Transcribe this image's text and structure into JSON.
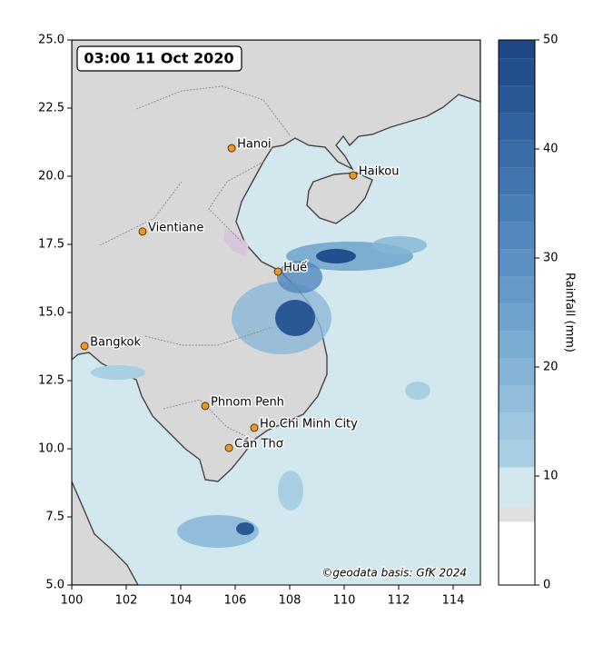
{
  "map": {
    "title": "03:00 11 Oct 2020",
    "xlim": [
      100,
      115
    ],
    "ylim": [
      5,
      25
    ],
    "xticks": [
      100,
      102,
      104,
      106,
      108,
      110,
      112,
      114
    ],
    "yticks": [
      {
        "value": 5,
        "label": "5.0"
      },
      7.5,
      {
        "value": 10,
        "label": "10.0"
      },
      12.5,
      {
        "value": 15,
        "label": "15.0"
      },
      17.5,
      {
        "value": 20,
        "label": "20.0"
      },
      22.5,
      {
        "value": 25,
        "label": "25.0"
      }
    ],
    "cities": [
      {
        "name": "Hanoi",
        "lon": 105.87,
        "lat": 21.03
      },
      {
        "name": "Haikou",
        "lon": 110.33,
        "lat": 20.03
      },
      {
        "name": "Vientiane",
        "lon": 102.6,
        "lat": 17.97
      },
      {
        "name": "Huế",
        "lon": 107.57,
        "lat": 16.5
      },
      {
        "name": "Bangkok",
        "lon": 100.47,
        "lat": 13.77
      },
      {
        "name": "Phnom Penh",
        "lon": 104.9,
        "lat": 11.57
      },
      {
        "name": "Ho Chi Minh City",
        "lon": 106.7,
        "lat": 10.77
      },
      {
        "name": "Cần Thơ",
        "lon": 105.77,
        "lat": 10.03
      }
    ],
    "attribution": "©geodata basis: GfK 2024",
    "colorbar": {
      "label": "Rainfall (mm)",
      "lim": [
        0,
        50
      ],
      "ticks": [
        0,
        10,
        20,
        30,
        40,
        50
      ],
      "levels": [
        0,
        5.8,
        7.2,
        10.8,
        13.3,
        15.8,
        18.3,
        20.8,
        23.3,
        25.8,
        28.3,
        30.8,
        33.3,
        35.8,
        38.3,
        40.8,
        43.3,
        45.8,
        48.3,
        50
      ],
      "colors": [
        "#ffffff",
        "#e0e0e0",
        "#d3e8ee",
        "#a9cfe3",
        "#9dc6df",
        "#91bdda",
        "#85b4d6",
        "#7aabd1",
        "#6fa2cc",
        "#6599c7",
        "#5c90c2",
        "#5387bd",
        "#4a7eb6",
        "#4275af",
        "#3a6ca8",
        "#3262a0",
        "#2a5897",
        "#234f8e",
        "#1f4886"
      ]
    }
  }
}
